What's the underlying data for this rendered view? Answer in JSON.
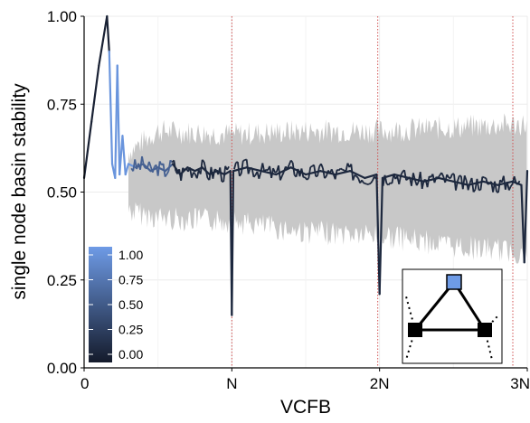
{
  "chart_data": {
    "type": "line",
    "xlabel": "VCFB",
    "ylabel": "single node basin stability",
    "xlim": [
      0,
      3
    ],
    "ylim": [
      0,
      1
    ],
    "x_ticks": [
      {
        "value": 0,
        "label": "0"
      },
      {
        "value": 1,
        "label": "N"
      },
      {
        "value": 2,
        "label": "2N"
      },
      {
        "value": 3,
        "label": "3N"
      }
    ],
    "y_ticks": [
      {
        "value": 0.0,
        "label": "0.00"
      },
      {
        "value": 0.25,
        "label": "0.25"
      },
      {
        "value": 0.5,
        "label": "0.50"
      },
      {
        "value": 0.75,
        "label": "0.75"
      },
      {
        "value": 1.0,
        "label": "1.00"
      }
    ],
    "grid": true,
    "vertical_markers": [
      1,
      2,
      3
    ],
    "series": [
      {
        "values_note": "x in units of N, y = single node basin stability; color encodes secondary value 0–1",
        "points": [
          [
            0.0,
            0.54
          ],
          [
            0.05,
            0.7
          ],
          [
            0.1,
            0.86
          ],
          [
            0.155,
            1.0
          ],
          [
            0.17,
            0.9
          ],
          [
            0.19,
            0.58
          ],
          [
            0.21,
            0.54
          ],
          [
            0.225,
            0.86
          ],
          [
            0.24,
            0.55
          ],
          [
            0.26,
            0.66
          ],
          [
            0.28,
            0.55
          ],
          [
            0.3,
            0.58
          ],
          [
            0.35,
            0.57
          ],
          [
            0.4,
            0.58
          ],
          [
            0.45,
            0.56
          ],
          [
            0.5,
            0.57
          ],
          [
            0.55,
            0.56
          ],
          [
            0.6,
            0.58
          ],
          [
            0.65,
            0.55
          ],
          [
            0.7,
            0.57
          ],
          [
            0.75,
            0.56
          ],
          [
            0.8,
            0.57
          ],
          [
            0.85,
            0.55
          ],
          [
            0.9,
            0.56
          ],
          [
            0.95,
            0.55
          ],
          [
            0.99,
            0.56
          ],
          [
            1.0,
            0.15
          ],
          [
            1.01,
            0.56
          ],
          [
            1.1,
            0.57
          ],
          [
            1.2,
            0.56
          ],
          [
            1.3,
            0.55
          ],
          [
            1.4,
            0.57
          ],
          [
            1.5,
            0.55
          ],
          [
            1.6,
            0.56
          ],
          [
            1.7,
            0.55
          ],
          [
            1.8,
            0.56
          ],
          [
            1.9,
            0.54
          ],
          [
            1.98,
            0.55
          ],
          [
            2.0,
            0.21
          ],
          [
            2.02,
            0.54
          ],
          [
            2.1,
            0.55
          ],
          [
            2.2,
            0.54
          ],
          [
            2.3,
            0.53
          ],
          [
            2.4,
            0.54
          ],
          [
            2.5,
            0.53
          ],
          [
            2.6,
            0.52
          ],
          [
            2.7,
            0.53
          ],
          [
            2.8,
            0.52
          ],
          [
            2.9,
            0.53
          ],
          [
            2.96,
            0.52
          ],
          [
            2.98,
            0.3
          ],
          [
            3.0,
            0.56
          ]
        ]
      }
    ],
    "band": {
      "upper": [
        [
          0.3,
          0.6
        ],
        [
          0.5,
          0.66
        ],
        [
          1.0,
          0.65
        ],
        [
          1.5,
          0.66
        ],
        [
          2.0,
          0.66
        ],
        [
          2.5,
          0.67
        ],
        [
          3.0,
          0.68
        ]
      ],
      "lower": [
        [
          0.3,
          0.46
        ],
        [
          0.5,
          0.44
        ],
        [
          1.0,
          0.43
        ],
        [
          1.5,
          0.4
        ],
        [
          2.0,
          0.39
        ],
        [
          2.5,
          0.36
        ],
        [
          3.0,
          0.34
        ]
      ]
    },
    "colorbar": {
      "ticks": [
        "1.00",
        "0.75",
        "0.50",
        "0.25",
        "0.00"
      ],
      "low_color": "#141b2b",
      "high_color": "#6e9be6"
    },
    "colors": {
      "band": "#c8c8c8",
      "marker_line": "#d05050",
      "node_top": "#6e9be6",
      "node_bottom": "#000000"
    }
  }
}
